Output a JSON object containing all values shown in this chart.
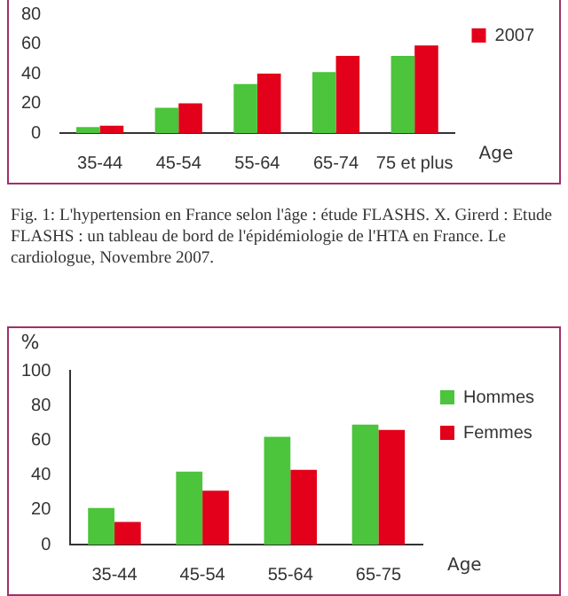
{
  "chart_data": [
    {
      "type": "bar",
      "categories": [
        "35-44",
        "45-54",
        "55-64",
        "65-74",
        "75 et plus"
      ],
      "xlabel": "Age",
      "series": [
        {
          "color": "#4cc43c",
          "values": [
            4,
            17,
            33,
            41,
            52
          ]
        },
        {
          "name": "2007",
          "color": "#e2001a",
          "values": [
            5,
            20,
            40,
            52,
            59
          ]
        }
      ],
      "ylim": [
        0,
        80
      ],
      "yticks": [
        0,
        20,
        40,
        60,
        80
      ],
      "grid": false,
      "legend": "top right",
      "annotations": [
        "Fig. 1: L'hypertension en France selon l'âge : étude FLASHS. X. Girerd : Etude FLASHS : un tableau de bord de l'épidémiologie de l'HTA en France. Le cardiologue, Novembre 2007."
      ]
    },
    {
      "type": "bar",
      "categories": [
        "35-44",
        "45-54",
        "55-64",
        "65-75"
      ],
      "xlabel": "Age",
      "ylabel": "%",
      "series": [
        {
          "name": "Hommes",
          "color": "#4cc43c",
          "values": [
            21,
            42,
            62,
            69
          ]
        },
        {
          "name": "Femmes",
          "color": "#e2001a",
          "values": [
            13,
            31,
            43,
            66
          ]
        }
      ],
      "ylim": [
        0,
        100
      ],
      "yticks": [
        0,
        20,
        40,
        60,
        80,
        100
      ],
      "grid": false,
      "legend": "top right"
    }
  ]
}
